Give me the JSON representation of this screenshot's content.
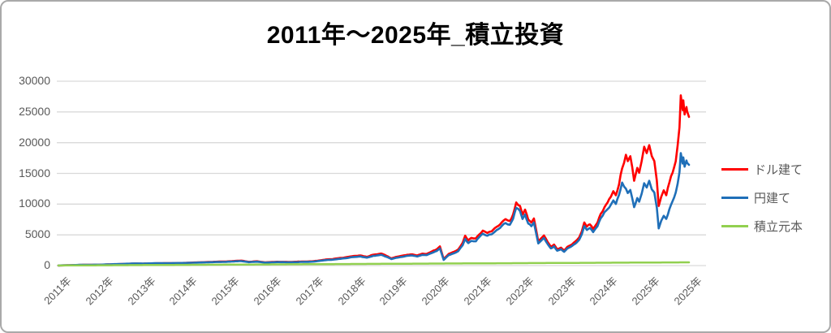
{
  "title": "2011年〜2025年_積立投資",
  "chart_data": {
    "type": "line",
    "title": "2011年〜2025年_積立投資",
    "grid": "horizontal",
    "legend_position": "right",
    "colors": {
      "grid": "#d9d9d9",
      "axis_text": "#595959",
      "title_text": "#000000",
      "border": "#a9a9a9"
    },
    "y_axis": {
      "min": 0,
      "max": 30000,
      "step": 5000,
      "tick_labels": [
        "0",
        "5000",
        "10000",
        "15000",
        "20000",
        "25000",
        "30000"
      ]
    },
    "x_axis": {
      "tick_labels": [
        "2011年",
        "2012年",
        "2013年",
        "2014年",
        "2015年",
        "2016年",
        "2017年",
        "2018年",
        "2019年",
        "2020年",
        "2021年",
        "2022年",
        "2023年",
        "2024年",
        "2025年",
        "2025年"
      ]
    },
    "series": [
      {
        "key": "usd",
        "name": "ドル建て",
        "color": "#ff0000",
        "width": 2.6,
        "noise": 0.016,
        "points": [
          [
            0.0,
            15
          ],
          [
            0.039,
            120
          ],
          [
            0.067,
            140
          ],
          [
            0.103,
            260
          ],
          [
            0.12,
            320
          ],
          [
            0.134,
            300
          ],
          [
            0.152,
            360
          ],
          [
            0.167,
            380
          ],
          [
            0.184,
            400
          ],
          [
            0.199,
            430
          ],
          [
            0.216,
            500
          ],
          [
            0.232,
            560
          ],
          [
            0.247,
            620
          ],
          [
            0.266,
            660
          ],
          [
            0.281,
            760
          ],
          [
            0.29,
            800
          ],
          [
            0.302,
            610
          ],
          [
            0.315,
            700
          ],
          [
            0.328,
            520
          ],
          [
            0.347,
            620
          ],
          [
            0.367,
            590
          ],
          [
            0.386,
            650
          ],
          [
            0.402,
            690
          ],
          [
            0.414,
            830
          ],
          [
            0.425,
            1000
          ],
          [
            0.435,
            1060
          ],
          [
            0.444,
            1200
          ],
          [
            0.453,
            1300
          ],
          [
            0.463,
            1480
          ],
          [
            0.471,
            1580
          ],
          [
            0.479,
            1650
          ],
          [
            0.489,
            1430
          ],
          [
            0.499,
            1760
          ],
          [
            0.506,
            1850
          ],
          [
            0.512,
            1960
          ],
          [
            0.52,
            1600
          ],
          [
            0.528,
            1180
          ],
          [
            0.535,
            1400
          ],
          [
            0.543,
            1560
          ],
          [
            0.553,
            1760
          ],
          [
            0.561,
            1830
          ],
          [
            0.569,
            1640
          ],
          [
            0.577,
            1940
          ],
          [
            0.584,
            1890
          ],
          [
            0.592,
            2280
          ],
          [
            0.6,
            2650
          ],
          [
            0.605,
            3120
          ],
          [
            0.611,
            1060
          ],
          [
            0.619,
            1900
          ],
          [
            0.627,
            2230
          ],
          [
            0.634,
            2620
          ],
          [
            0.641,
            3700
          ],
          [
            0.645,
            4870
          ],
          [
            0.65,
            4100
          ],
          [
            0.655,
            4500
          ],
          [
            0.662,
            4420
          ],
          [
            0.667,
            5020
          ],
          [
            0.673,
            5680
          ],
          [
            0.68,
            5310
          ],
          [
            0.687,
            5560
          ],
          [
            0.695,
            6300
          ],
          [
            0.703,
            7030
          ],
          [
            0.709,
            7560
          ],
          [
            0.716,
            7260
          ],
          [
            0.721,
            8300
          ],
          [
            0.726,
            10270
          ],
          [
            0.732,
            9700
          ],
          [
            0.736,
            8280
          ],
          [
            0.74,
            9100
          ],
          [
            0.745,
            7480
          ],
          [
            0.75,
            7000
          ],
          [
            0.754,
            7660
          ],
          [
            0.761,
            3940
          ],
          [
            0.764,
            4260
          ],
          [
            0.77,
            4900
          ],
          [
            0.776,
            3800
          ],
          [
            0.781,
            3060
          ],
          [
            0.786,
            3420
          ],
          [
            0.791,
            2640
          ],
          [
            0.797,
            2920
          ],
          [
            0.802,
            2460
          ],
          [
            0.807,
            3040
          ],
          [
            0.812,
            3300
          ],
          [
            0.817,
            3700
          ],
          [
            0.822,
            4120
          ],
          [
            0.826,
            4600
          ],
          [
            0.83,
            5550
          ],
          [
            0.834,
            7020
          ],
          [
            0.838,
            6340
          ],
          [
            0.843,
            6700
          ],
          [
            0.848,
            5950
          ],
          [
            0.855,
            7000
          ],
          [
            0.86,
            8400
          ],
          [
            0.866,
            9500
          ],
          [
            0.871,
            10300
          ],
          [
            0.876,
            11200
          ],
          [
            0.88,
            12100
          ],
          [
            0.884,
            11450
          ],
          [
            0.889,
            13200
          ],
          [
            0.894,
            15800
          ],
          [
            0.9,
            18030
          ],
          [
            0.903,
            17000
          ],
          [
            0.907,
            17800
          ],
          [
            0.913,
            13800
          ],
          [
            0.918,
            15900
          ],
          [
            0.921,
            15100
          ],
          [
            0.925,
            17000
          ],
          [
            0.929,
            19340
          ],
          [
            0.933,
            18300
          ],
          [
            0.937,
            19600
          ],
          [
            0.941,
            17800
          ],
          [
            0.945,
            17000
          ],
          [
            0.949,
            13800
          ],
          [
            0.952,
            9700
          ],
          [
            0.956,
            11200
          ],
          [
            0.96,
            12250
          ],
          [
            0.964,
            11450
          ],
          [
            0.969,
            13550
          ],
          [
            0.974,
            15100
          ],
          [
            0.979,
            17000
          ],
          [
            0.982,
            19500
          ],
          [
            0.985,
            22500
          ],
          [
            0.987,
            27700
          ],
          [
            0.99,
            25300
          ],
          [
            0.991,
            26900
          ],
          [
            0.993,
            24600
          ],
          [
            0.996,
            25800
          ],
          [
            0.997,
            25100
          ],
          [
            1.0,
            24200
          ]
        ]
      },
      {
        "key": "jpy",
        "name": "円建て",
        "color": "#1f6fb8",
        "width": 2.6,
        "noise": 0.016,
        "points": [
          [
            0.0,
            18
          ],
          [
            0.039,
            130
          ],
          [
            0.067,
            150
          ],
          [
            0.103,
            280
          ],
          [
            0.12,
            350
          ],
          [
            0.134,
            330
          ],
          [
            0.152,
            380
          ],
          [
            0.167,
            390
          ],
          [
            0.199,
            420
          ],
          [
            0.216,
            470
          ],
          [
            0.232,
            520
          ],
          [
            0.247,
            570
          ],
          [
            0.266,
            610
          ],
          [
            0.281,
            700
          ],
          [
            0.29,
            730
          ],
          [
            0.302,
            560
          ],
          [
            0.315,
            640
          ],
          [
            0.328,
            480
          ],
          [
            0.347,
            570
          ],
          [
            0.367,
            540
          ],
          [
            0.386,
            590
          ],
          [
            0.402,
            630
          ],
          [
            0.414,
            760
          ],
          [
            0.425,
            900
          ],
          [
            0.435,
            960
          ],
          [
            0.444,
            1080
          ],
          [
            0.453,
            1170
          ],
          [
            0.463,
            1330
          ],
          [
            0.471,
            1420
          ],
          [
            0.479,
            1490
          ],
          [
            0.489,
            1290
          ],
          [
            0.499,
            1580
          ],
          [
            0.506,
            1660
          ],
          [
            0.512,
            1760
          ],
          [
            0.52,
            1440
          ],
          [
            0.528,
            1060
          ],
          [
            0.535,
            1260
          ],
          [
            0.543,
            1400
          ],
          [
            0.553,
            1580
          ],
          [
            0.561,
            1650
          ],
          [
            0.569,
            1480
          ],
          [
            0.577,
            1750
          ],
          [
            0.584,
            1700
          ],
          [
            0.592,
            2050
          ],
          [
            0.6,
            2380
          ],
          [
            0.605,
            2800
          ],
          [
            0.611,
            930
          ],
          [
            0.619,
            1700
          ],
          [
            0.627,
            2000
          ],
          [
            0.634,
            2350
          ],
          [
            0.641,
            3300
          ],
          [
            0.645,
            4350
          ],
          [
            0.65,
            3660
          ],
          [
            0.655,
            4020
          ],
          [
            0.662,
            3950
          ],
          [
            0.667,
            4600
          ],
          [
            0.673,
            5200
          ],
          [
            0.68,
            4860
          ],
          [
            0.687,
            5090
          ],
          [
            0.695,
            5770
          ],
          [
            0.703,
            6440
          ],
          [
            0.709,
            6920
          ],
          [
            0.716,
            6650
          ],
          [
            0.721,
            7600
          ],
          [
            0.726,
            9400
          ],
          [
            0.732,
            8880
          ],
          [
            0.736,
            7580
          ],
          [
            0.74,
            8330
          ],
          [
            0.745,
            6850
          ],
          [
            0.75,
            6410
          ],
          [
            0.754,
            7010
          ],
          [
            0.761,
            3610
          ],
          [
            0.764,
            3900
          ],
          [
            0.77,
            4490
          ],
          [
            0.776,
            3480
          ],
          [
            0.781,
            2800
          ],
          [
            0.786,
            3130
          ],
          [
            0.791,
            2420
          ],
          [
            0.797,
            2670
          ],
          [
            0.802,
            2250
          ],
          [
            0.807,
            2780
          ],
          [
            0.812,
            3020
          ],
          [
            0.817,
            3390
          ],
          [
            0.822,
            3770
          ],
          [
            0.826,
            4210
          ],
          [
            0.83,
            5080
          ],
          [
            0.834,
            6430
          ],
          [
            0.838,
            5800
          ],
          [
            0.843,
            6130
          ],
          [
            0.848,
            5450
          ],
          [
            0.855,
            6410
          ],
          [
            0.86,
            7690
          ],
          [
            0.866,
            8700
          ],
          [
            0.871,
            9200
          ],
          [
            0.876,
            9900
          ],
          [
            0.88,
            10600
          ],
          [
            0.884,
            10030
          ],
          [
            0.889,
            11500
          ],
          [
            0.894,
            13500
          ],
          [
            0.9,
            12500
          ],
          [
            0.903,
            11800
          ],
          [
            0.907,
            12300
          ],
          [
            0.913,
            9500
          ],
          [
            0.918,
            11000
          ],
          [
            0.921,
            10400
          ],
          [
            0.925,
            11700
          ],
          [
            0.929,
            13400
          ],
          [
            0.933,
            12700
          ],
          [
            0.937,
            13800
          ],
          [
            0.941,
            12400
          ],
          [
            0.945,
            11900
          ],
          [
            0.949,
            9400
          ],
          [
            0.952,
            6050
          ],
          [
            0.956,
            7300
          ],
          [
            0.96,
            8100
          ],
          [
            0.964,
            7600
          ],
          [
            0.969,
            9200
          ],
          [
            0.974,
            10500
          ],
          [
            0.979,
            11900
          ],
          [
            0.982,
            13300
          ],
          [
            0.985,
            15200
          ],
          [
            0.987,
            18300
          ],
          [
            0.99,
            16600
          ],
          [
            0.991,
            17600
          ],
          [
            0.993,
            16100
          ],
          [
            0.996,
            17100
          ],
          [
            0.997,
            16700
          ],
          [
            1.0,
            16400
          ]
        ]
      },
      {
        "key": "principal",
        "name": "積立元本",
        "color": "#92d050",
        "width": 2.5,
        "noise": 0,
        "points": [
          [
            0.0,
            15
          ],
          [
            0.2,
            120
          ],
          [
            0.4,
            225
          ],
          [
            0.6,
            330
          ],
          [
            0.78,
            420
          ],
          [
            1.0,
            530
          ]
        ]
      }
    ]
  }
}
